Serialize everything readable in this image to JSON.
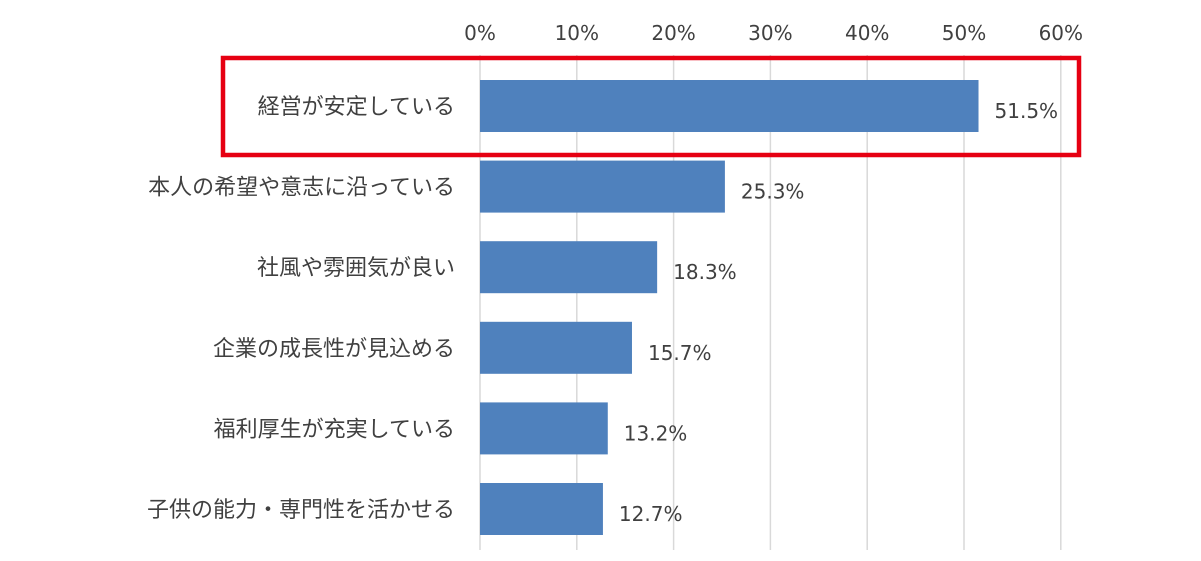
{
  "chart_data": {
    "type": "bar",
    "orientation": "horizontal",
    "categories": [
      "経営が安定している",
      "本人の希望や意志に沿っている",
      "社風や雰囲気が良い",
      "企業の成長性が見込める",
      "福利厚生が充実している",
      "子供の能力・専門性を活かせる"
    ],
    "values": [
      51.5,
      25.3,
      18.3,
      15.7,
      13.2,
      12.7
    ],
    "value_labels": [
      "51.5%",
      "25.3%",
      "18.3%",
      "15.7%",
      "13.2%",
      "12.7%"
    ],
    "x_ticks": [
      "0%",
      "10%",
      "20%",
      "30%",
      "40%",
      "50%",
      "60%"
    ],
    "xlim": [
      0,
      60
    ],
    "grid": true,
    "axis_position": "top",
    "highlight_index": 0
  },
  "colors": {
    "bar": "#4f81bd",
    "grid": "#d9d9d9",
    "highlight": "#e60012",
    "text": "#404040"
  }
}
